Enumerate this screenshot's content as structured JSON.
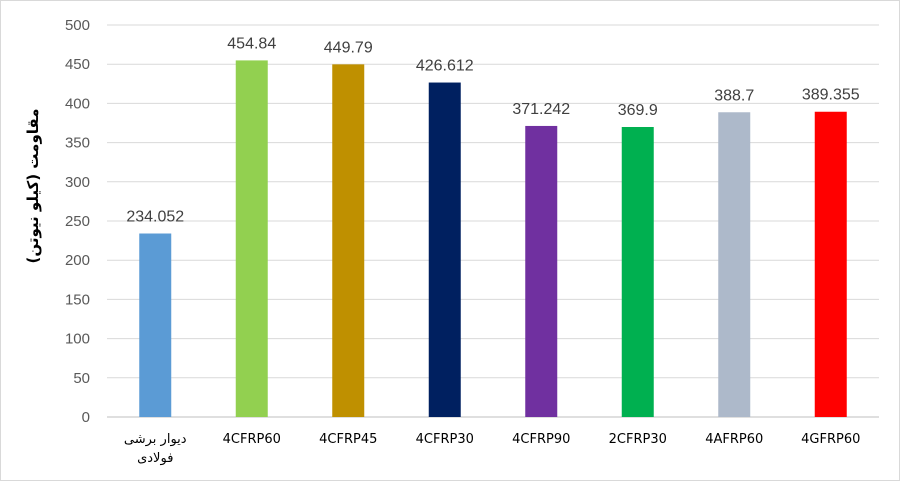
{
  "chart_data": {
    "type": "bar",
    "title": "",
    "xlabel": "",
    "ylabel": "مقاومت (کیلو نیوتن)",
    "ylim": [
      0,
      500
    ],
    "yticks": [
      0,
      50,
      100,
      150,
      200,
      250,
      300,
      350,
      400,
      450,
      500
    ],
    "grid": true,
    "legend": "none",
    "categories": [
      "دیوار برشی فولادی",
      "4CFRP60",
      "4CFRP45",
      "4CFRP30",
      "4CFRP90",
      "2CFRP30",
      "4AFRP60",
      "4GFRP60"
    ],
    "category_lines": [
      [
        "دیوار برشی",
        "فولادی"
      ],
      [
        "4CFRP60"
      ],
      [
        "4CFRP45"
      ],
      [
        "4CFRP30"
      ],
      [
        "4CFRP90"
      ],
      [
        "2CFRP30"
      ],
      [
        "4AFRP60"
      ],
      [
        "4GFRP60"
      ]
    ],
    "values": [
      234.052,
      454.84,
      449.79,
      426.612,
      371.242,
      369.9,
      388.7,
      389.355
    ],
    "data_labels": [
      "234.052",
      "454.84",
      "449.79",
      "426.612",
      "371.242",
      "369.9",
      "388.7",
      "389.355"
    ],
    "colors": [
      "#5b9bd5",
      "#92d050",
      "#bf9000",
      "#002060",
      "#7030a0",
      "#00b050",
      "#adb9ca",
      "#ff0000"
    ],
    "gridline_color": "#d9d9d9",
    "axis_color": "#bfbfbf"
  }
}
